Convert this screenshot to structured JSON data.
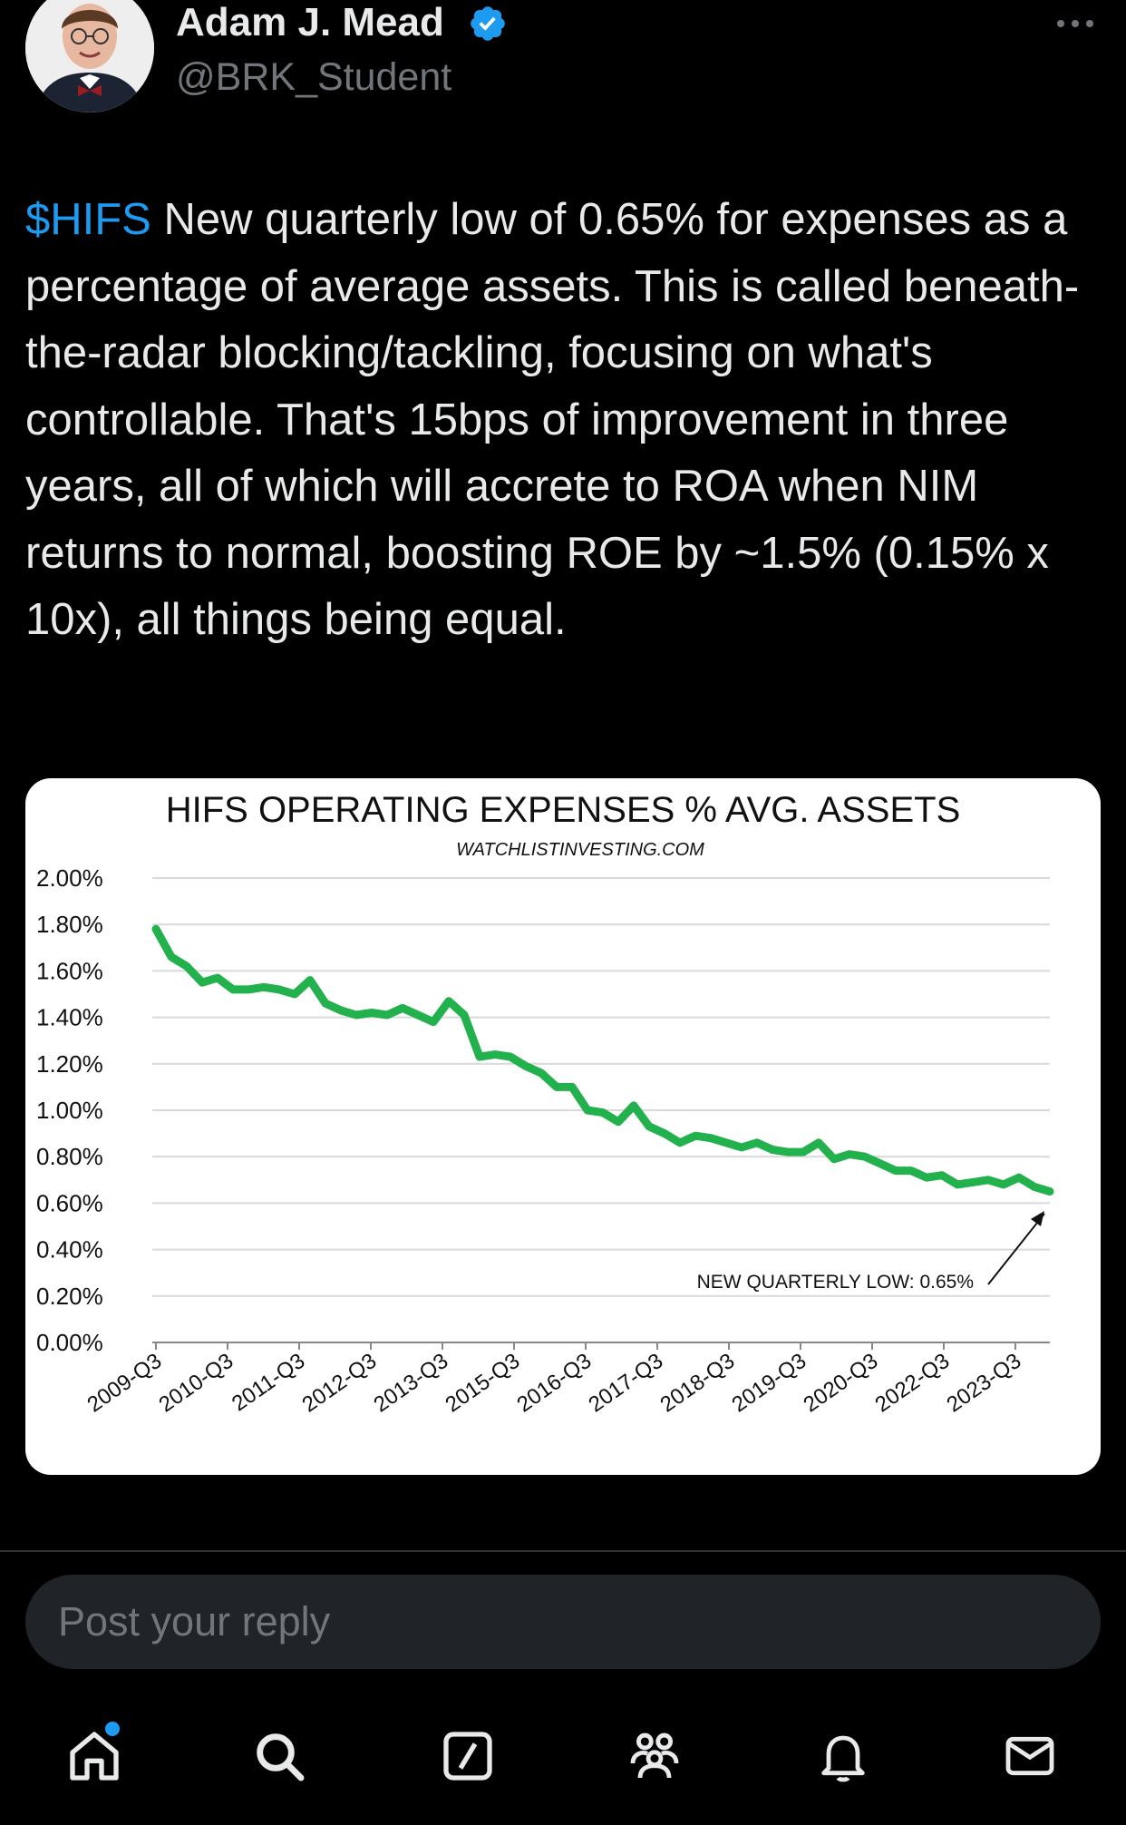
{
  "post": {
    "author_name": "Adam J. Mead",
    "handle": "@BRK_Student",
    "cashtag": "$HIFS",
    "text": " New quarterly low of 0.65% for expenses as a percentage of average assets. This is called beneath-the-radar blocking/tackling, focusing on what's controllable. That's 15bps of improvement in three years, all of which will accrete to ROA when NIM returns to normal, boosting ROE by ~1.5% (0.15% x 10x), all things being equal."
  },
  "chart_data": {
    "type": "line",
    "title": "HIFS OPERATING EXPENSES % AVG. ASSETS",
    "subtitle": "WATCHLISTINVESTING.COM",
    "annotation": "NEW QUARTERLY LOW: 0.65%",
    "ylim": [
      0,
      2.0
    ],
    "y_ticks": [
      "2.00%",
      "1.80%",
      "1.60%",
      "1.40%",
      "1.20%",
      "1.00%",
      "0.80%",
      "0.60%",
      "0.40%",
      "0.20%",
      "0.00%"
    ],
    "x_tick_labels": [
      "2009-Q3",
      "2010-Q3",
      "2011-Q3",
      "2012-Q3",
      "2013-Q3",
      "2015-Q3",
      "2016-Q3",
      "2017-Q3",
      "2018-Q3",
      "2019-Q3",
      "2020-Q3",
      "2022-Q3",
      "2023-Q3"
    ],
    "line_color": "#22b14c",
    "grid": true,
    "series": [
      {
        "values": [
          1.78,
          1.66,
          1.62,
          1.55,
          1.57,
          1.52,
          1.52,
          1.53,
          1.52,
          1.5,
          1.56,
          1.46,
          1.43,
          1.41,
          1.42,
          1.41,
          1.44,
          1.41,
          1.38,
          1.47,
          1.41,
          1.23,
          1.24,
          1.23,
          1.19,
          1.16,
          1.1,
          1.1,
          1.0,
          0.99,
          0.95,
          1.02,
          0.93,
          0.9,
          0.86,
          0.89,
          0.88,
          0.86,
          0.84,
          0.86,
          0.83,
          0.82,
          0.82,
          0.86,
          0.79,
          0.81,
          0.8,
          0.77,
          0.74,
          0.74,
          0.71,
          0.72,
          0.68,
          0.69,
          0.7,
          0.68,
          0.71,
          0.67,
          0.65
        ]
      }
    ]
  },
  "reply": {
    "placeholder": "Post your reply"
  },
  "icons": {
    "verified": "verified-badge-icon",
    "more": "more-options-icon",
    "tabs": [
      "home-icon",
      "search-icon",
      "grok-icon",
      "communities-icon",
      "notifications-icon",
      "messages-icon"
    ]
  },
  "colors": {
    "accent": "#1d9bf0",
    "background": "#000000",
    "text": "#e7e9ea",
    "muted": "#71767b"
  }
}
